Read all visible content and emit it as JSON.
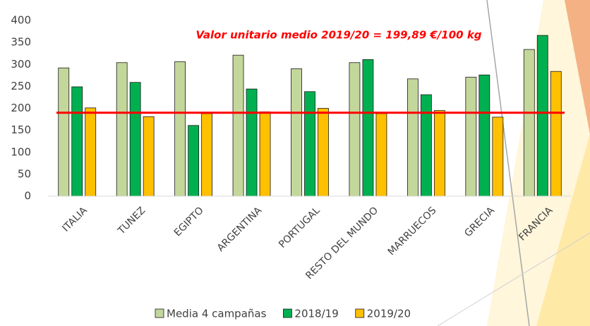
{
  "chart_data": {
    "type": "bar",
    "annotation": "Valor unitario medio 2019/20 = 199,89 €/100 kg",
    "categories": [
      "ITALIA",
      "TUNEZ",
      "EGIPTO",
      "ARGENTINA",
      "PORTUGAL",
      "RESTO DEL MUNDO",
      "MARRUECOS",
      "GRECIA",
      "FRANCIA"
    ],
    "series": [
      {
        "name": "Media 4 campañas",
        "color": "#c4d79b",
        "values": [
          292,
          304,
          306,
          321,
          290,
          304,
          267,
          271,
          334
        ]
      },
      {
        "name": "2018/19",
        "color": "#00b050",
        "values": [
          249,
          259,
          161,
          244,
          238,
          311,
          231,
          276,
          366
        ]
      },
      {
        "name": "2019/20",
        "color": "#ffc000",
        "values": [
          201,
          181,
          188,
          192,
          200,
          188,
          195,
          180,
          284
        ]
      }
    ],
    "reference_line": {
      "value": 190,
      "color": "#ff0000"
    },
    "ylim": [
      0,
      400
    ],
    "yticks": [
      0,
      50,
      100,
      150,
      200,
      250,
      300,
      350,
      400
    ],
    "grid": false
  }
}
